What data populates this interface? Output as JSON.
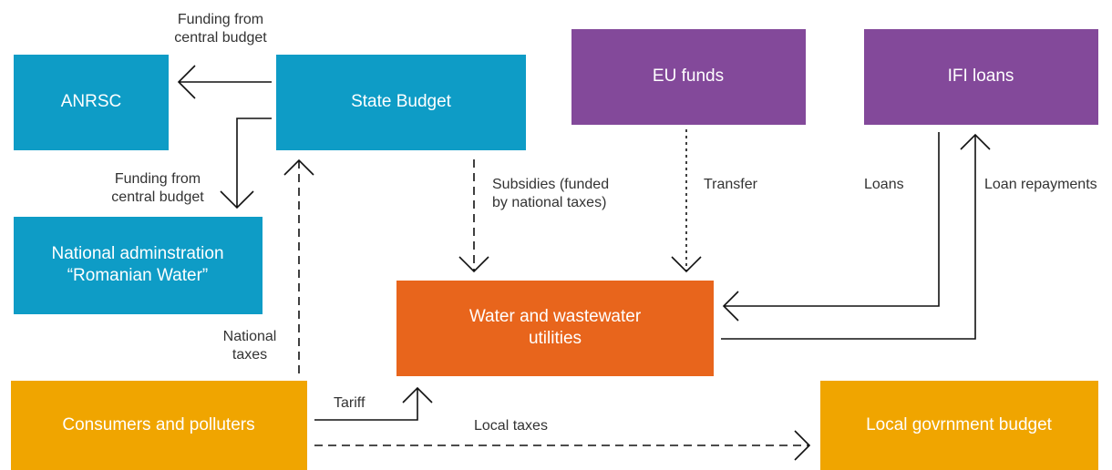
{
  "nodes": [
    {
      "id": "anrsc",
      "lines": [
        "ANRSC"
      ]
    },
    {
      "id": "state",
      "lines": [
        "State Budget"
      ]
    },
    {
      "id": "national",
      "lines": [
        "National adminstration",
        "“Romanian Water”"
      ]
    },
    {
      "id": "eu",
      "lines": [
        "EU funds"
      ]
    },
    {
      "id": "ifi",
      "lines": [
        "IFI loans"
      ]
    },
    {
      "id": "utilities",
      "lines": [
        "Water and wastewater",
        "utilities"
      ]
    },
    {
      "id": "consumers",
      "lines": [
        "Consumers and polluters"
      ]
    },
    {
      "id": "local",
      "lines": [
        "Local govrnment budget"
      ]
    }
  ],
  "edges": [
    {
      "lines": [
        "Funding from",
        "central budget"
      ]
    },
    {
      "lines": [
        "Funding from",
        "central budget"
      ]
    },
    {
      "lines": [
        "Subsidies (funded",
        "by national taxes)"
      ]
    },
    {
      "lines": [
        "Transfer"
      ]
    },
    {
      "lines": [
        "Loans"
      ]
    },
    {
      "lines": [
        "Loan repayments"
      ]
    },
    {
      "lines": [
        "National",
        "taxes"
      ]
    },
    {
      "lines": [
        "Tariff"
      ]
    },
    {
      "lines": [
        "Local taxes"
      ]
    }
  ]
}
